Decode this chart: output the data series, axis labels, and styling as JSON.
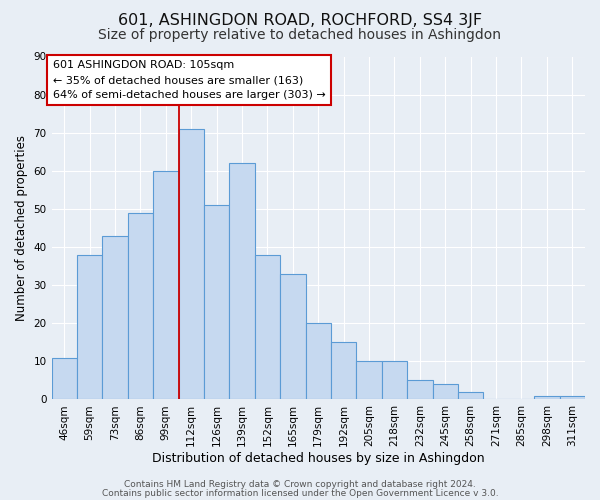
{
  "title": "601, ASHINGDON ROAD, ROCHFORD, SS4 3JF",
  "subtitle": "Size of property relative to detached houses in Ashingdon",
  "xlabel": "Distribution of detached houses by size in Ashingdon",
  "ylabel": "Number of detached properties",
  "bar_labels": [
    "46sqm",
    "59sqm",
    "73sqm",
    "86sqm",
    "99sqm",
    "112sqm",
    "126sqm",
    "139sqm",
    "152sqm",
    "165sqm",
    "179sqm",
    "192sqm",
    "205sqm",
    "218sqm",
    "232sqm",
    "245sqm",
    "258sqm",
    "271sqm",
    "285sqm",
    "298sqm",
    "311sqm"
  ],
  "bar_heights": [
    11,
    38,
    43,
    49,
    60,
    71,
    51,
    62,
    38,
    33,
    20,
    15,
    10,
    10,
    5,
    4,
    2,
    0,
    0,
    1,
    1
  ],
  "bar_color": "#c6d9f0",
  "bar_edgecolor": "#5b9bd5",
  "bar_linewidth": 0.8,
  "vline_color": "#cc0000",
  "vline_linewidth": 1.3,
  "ylim": [
    0,
    90
  ],
  "yticks": [
    0,
    10,
    20,
    30,
    40,
    50,
    60,
    70,
    80,
    90
  ],
  "annotation_line1": "601 ASHINGDON ROAD: 105sqm",
  "annotation_line2": "← 35% of detached houses are smaller (163)",
  "annotation_line3": "64% of semi-detached houses are larger (303) →",
  "annotation_box_edgecolor": "#cc0000",
  "annotation_box_facecolor": "#ffffff",
  "footer1": "Contains HM Land Registry data © Crown copyright and database right 2024.",
  "footer2": "Contains public sector information licensed under the Open Government Licence v 3.0.",
  "plot_bg_color": "#e8eef5",
  "fig_bg_color": "#e8eef5",
  "grid_color": "#ffffff",
  "title_fontsize": 11.5,
  "subtitle_fontsize": 10,
  "xlabel_fontsize": 9,
  "ylabel_fontsize": 8.5,
  "tick_fontsize": 7.5,
  "annotation_fontsize": 8,
  "footer_fontsize": 6.5
}
